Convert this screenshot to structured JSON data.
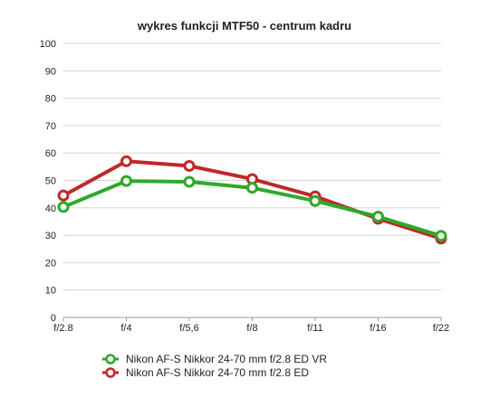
{
  "chart_data": {
    "type": "line",
    "title": "wykres funkcji MTF50 - centrum kadru",
    "xlabel": "",
    "ylabel": "",
    "categories": [
      "f/2.8",
      "f/4",
      "f/5,6",
      "f/8",
      "f/11",
      "f/16",
      "f/22"
    ],
    "ylim": [
      0,
      100
    ],
    "yticks": [
      0,
      10,
      20,
      30,
      40,
      50,
      60,
      70,
      80,
      90,
      100
    ],
    "grid": true,
    "legend_position": "bottom",
    "series": [
      {
        "name": "Nikon AF-S Nikkor 24-70 mm f/2.8 ED VR",
        "color": "#2fa82a",
        "values": [
          40.3,
          49.8,
          49.5,
          47.3,
          42.5,
          36.8,
          29.8
        ]
      },
      {
        "name": "Nikon AF-S Nikkor 24-70 mm f/2.8 ED",
        "color": "#c0282a",
        "values": [
          44.5,
          57.0,
          55.3,
          50.5,
          44.2,
          36.0,
          28.8
        ]
      }
    ]
  }
}
